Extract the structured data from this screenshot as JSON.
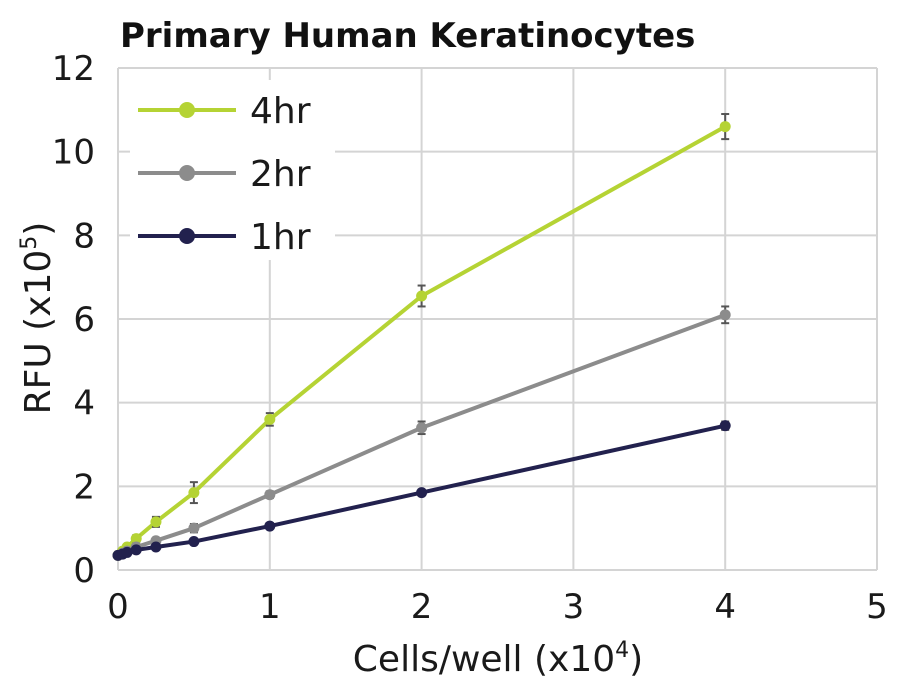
{
  "chart_data": {
    "type": "line",
    "title": "Primary Human Keratinocytes",
    "xlabel_base": "Cells/well (x10",
    "xlabel_exp": "4",
    "xlabel_close": ")",
    "ylabel_base": "RFU (x10",
    "ylabel_exp": "5",
    "ylabel_close": ")",
    "xlim": [
      0,
      5
    ],
    "ylim": [
      0,
      12
    ],
    "xticks": [
      "0",
      "1",
      "2",
      "3",
      "4",
      "5"
    ],
    "yticks": [
      "0",
      "2",
      "4",
      "6",
      "8",
      "10",
      "12"
    ],
    "grid": true,
    "legend_position": "top-left",
    "x": [
      0,
      0.03,
      0.06,
      0.12,
      0.25,
      0.5,
      1,
      2,
      4
    ],
    "series": [
      {
        "name": "4hr",
        "color": "#b5d334",
        "values": [
          0.35,
          0.45,
          0.55,
          0.75,
          1.15,
          1.85,
          3.6,
          6.55,
          10.6
        ],
        "errors": [
          0.03,
          0.04,
          0.05,
          0.08,
          0.12,
          0.25,
          0.15,
          0.25,
          0.3
        ]
      },
      {
        "name": "2hr",
        "color": "#8c8c8c",
        "values": [
          0.35,
          0.4,
          0.45,
          0.55,
          0.7,
          1.0,
          1.8,
          3.4,
          6.1
        ],
        "errors": [
          0.02,
          0.03,
          0.03,
          0.05,
          0.06,
          0.1,
          0.08,
          0.15,
          0.2
        ]
      },
      {
        "name": "1hr",
        "color": "#22214e",
        "values": [
          0.35,
          0.38,
          0.42,
          0.48,
          0.55,
          0.68,
          1.05,
          1.85,
          3.45
        ],
        "errors": [
          0.02,
          0.02,
          0.02,
          0.03,
          0.03,
          0.04,
          0.05,
          0.07,
          0.1
        ]
      }
    ]
  }
}
